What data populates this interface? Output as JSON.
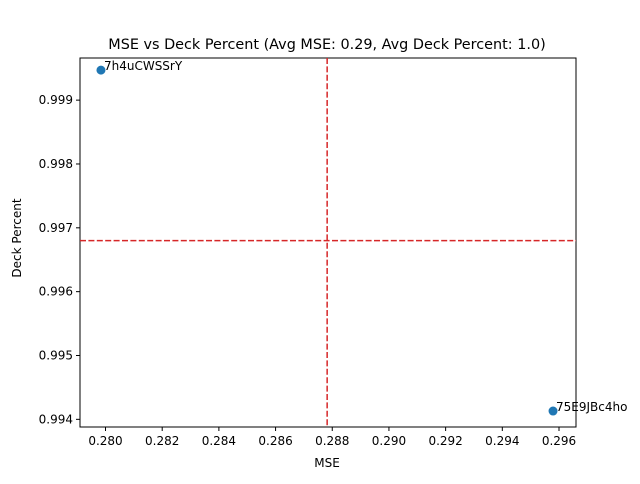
{
  "chart_data": {
    "type": "scatter",
    "title": "MSE vs Deck Percent (Avg MSE: 0.29, Avg Deck Percent: 1.0)",
    "xlabel": "MSE",
    "ylabel": "Deck Percent",
    "xlim": [
      0.2791,
      0.2966
    ],
    "ylim": [
      0.99388,
      0.99966
    ],
    "grid": false,
    "x_ticks": [
      0.28,
      0.282,
      0.284,
      0.286,
      0.288,
      0.29,
      0.292,
      0.294,
      0.296
    ],
    "x_tick_labels": [
      "0.280",
      "0.282",
      "0.284",
      "0.286",
      "0.288",
      "0.290",
      "0.292",
      "0.294",
      "0.296"
    ],
    "y_ticks": [
      0.994,
      0.995,
      0.996,
      0.997,
      0.998,
      0.999
    ],
    "y_tick_labels": [
      "0.994",
      "0.995",
      "0.996",
      "0.997",
      "0.998",
      "0.999"
    ],
    "points": [
      {
        "label": "7h4uCWSSrY",
        "x": 0.27984,
        "y": 0.99947
      },
      {
        "label": "75E9JBc4ho",
        "x": 0.29579,
        "y": 0.99413
      }
    ],
    "reference_lines": [
      {
        "orientation": "vertical",
        "value": 0.28782,
        "color": "#d62728",
        "style": "dashed"
      },
      {
        "orientation": "horizontal",
        "value": 0.9968,
        "color": "#d62728",
        "style": "dashed"
      }
    ],
    "colors": {
      "points": "#1f77b4",
      "reference": "#d62728",
      "axes": "#000000"
    }
  }
}
